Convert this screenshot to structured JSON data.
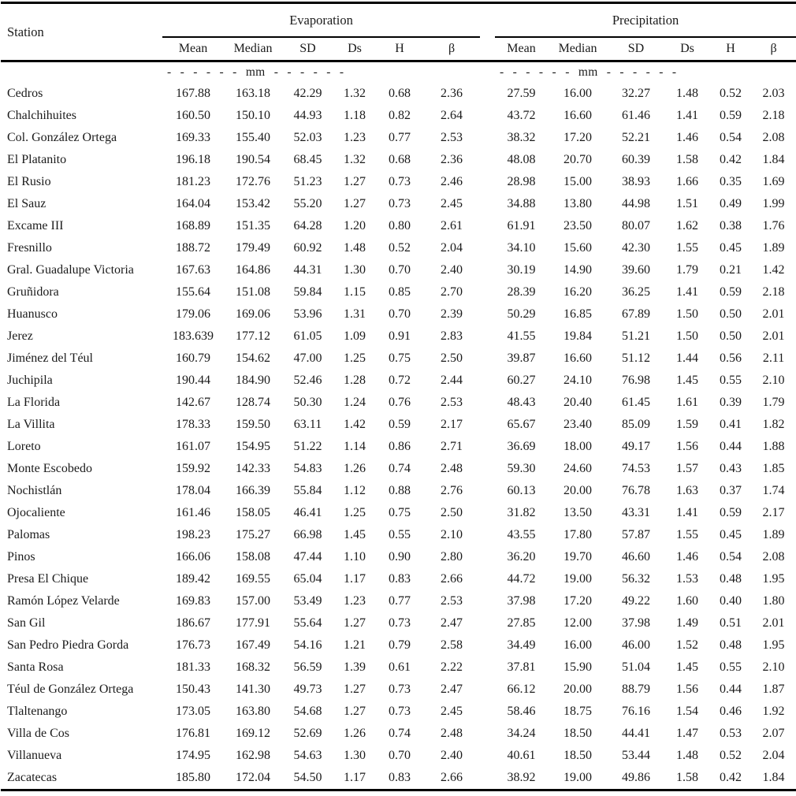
{
  "table": {
    "station_header": "Station",
    "groups": [
      {
        "label": "Evaporation"
      },
      {
        "label": "Precipitation"
      }
    ],
    "sub_headers": [
      "Mean",
      "Median",
      "SD",
      "Ds",
      "H",
      "β"
    ],
    "units": "- - - - - - mm - - - - - -",
    "rows": [
      {
        "station": "Cedros",
        "evap": [
          "167.88",
          "163.18",
          "42.29",
          "1.32",
          "0.68",
          "2.36"
        ],
        "precip": [
          "27.59",
          "16.00",
          "32.27",
          "1.48",
          "0.52",
          "2.03"
        ]
      },
      {
        "station": "Chalchihuites",
        "evap": [
          "160.50",
          "150.10",
          "44.93",
          "1.18",
          "0.82",
          "2.64"
        ],
        "precip": [
          "43.72",
          "16.60",
          "61.46",
          "1.41",
          "0.59",
          "2.18"
        ]
      },
      {
        "station": "Col. González Ortega",
        "evap": [
          "169.33",
          "155.40",
          "52.03",
          "1.23",
          "0.77",
          "2.53"
        ],
        "precip": [
          "38.32",
          "17.20",
          "52.21",
          "1.46",
          "0.54",
          "2.08"
        ]
      },
      {
        "station": "El Platanito",
        "evap": [
          "196.18",
          "190.54",
          "68.45",
          "1.32",
          "0.68",
          "2.36"
        ],
        "precip": [
          "48.08",
          "20.70",
          "60.39",
          "1.58",
          "0.42",
          "1.84"
        ]
      },
      {
        "station": "El Rusio",
        "evap": [
          "181.23",
          "172.76",
          "51.23",
          "1.27",
          "0.73",
          "2.46"
        ],
        "precip": [
          "28.98",
          "15.00",
          "38.93",
          "1.66",
          "0.35",
          "1.69"
        ]
      },
      {
        "station": "El Sauz",
        "evap": [
          "164.04",
          "153.42",
          "55.20",
          "1.27",
          "0.73",
          "2.45"
        ],
        "precip": [
          "34.88",
          "13.80",
          "44.98",
          "1.51",
          "0.49",
          "1.99"
        ]
      },
      {
        "station": "Excame III",
        "evap": [
          "168.89",
          "151.35",
          "64.28",
          "1.20",
          "0.80",
          "2.61"
        ],
        "precip": [
          "61.91",
          "23.50",
          "80.07",
          "1.62",
          "0.38",
          "1.76"
        ]
      },
      {
        "station": "Fresnillo",
        "evap": [
          "188.72",
          "179.49",
          "60.92",
          "1.48",
          "0.52",
          "2.04"
        ],
        "precip": [
          "34.10",
          "15.60",
          "42.30",
          "1.55",
          "0.45",
          "1.89"
        ]
      },
      {
        "station": "Gral. Guadalupe Victoria",
        "evap": [
          "167.63",
          "164.86",
          "44.31",
          "1.30",
          "0.70",
          "2.40"
        ],
        "precip": [
          "30.19",
          "14.90",
          "39.60",
          "1.79",
          "0.21",
          "1.42"
        ]
      },
      {
        "station": "Gruñidora",
        "evap": [
          "155.64",
          "151.08",
          "59.84",
          "1.15",
          "0.85",
          "2.70"
        ],
        "precip": [
          "28.39",
          "16.20",
          "36.25",
          "1.41",
          "0.59",
          "2.18"
        ]
      },
      {
        "station": "Huanusco",
        "evap": [
          "179.06",
          "169.06",
          "53.96",
          "1.31",
          "0.70",
          "2.39"
        ],
        "precip": [
          "50.29",
          "16.85",
          "67.89",
          "1.50",
          "0.50",
          "2.01"
        ]
      },
      {
        "station": "Jerez",
        "evap": [
          "183.639",
          "177.12",
          "61.05",
          "1.09",
          "0.91",
          "2.83"
        ],
        "precip": [
          "41.55",
          "19.84",
          "51.21",
          "1.50",
          "0.50",
          "2.01"
        ]
      },
      {
        "station": "Jiménez del Téul",
        "evap": [
          "160.79",
          "154.62",
          "47.00",
          "1.25",
          "0.75",
          "2.50"
        ],
        "precip": [
          "39.87",
          "16.60",
          "51.12",
          "1.44",
          "0.56",
          "2.11"
        ]
      },
      {
        "station": "Juchipila",
        "evap": [
          "190.44",
          "184.90",
          "52.46",
          "1.28",
          "0.72",
          "2.44"
        ],
        "precip": [
          "60.27",
          "24.10",
          "76.98",
          "1.45",
          "0.55",
          "2.10"
        ]
      },
      {
        "station": "La Florida",
        "evap": [
          "142.67",
          "128.74",
          "50.30",
          "1.24",
          "0.76",
          "2.53"
        ],
        "precip": [
          "48.43",
          "20.40",
          "61.45",
          "1.61",
          "0.39",
          "1.79"
        ]
      },
      {
        "station": "La Villita",
        "evap": [
          "178.33",
          "159.50",
          "63.11",
          "1.42",
          "0.59",
          "2.17"
        ],
        "precip": [
          "65.67",
          "23.40",
          "85.09",
          "1.59",
          "0.41",
          "1.82"
        ]
      },
      {
        "station": "Loreto",
        "evap": [
          "161.07",
          "154.95",
          "51.22",
          "1.14",
          "0.86",
          "2.71"
        ],
        "precip": [
          "36.69",
          "18.00",
          "49.17",
          "1.56",
          "0.44",
          "1.88"
        ]
      },
      {
        "station": "Monte Escobedo",
        "evap": [
          "159.92",
          "142.33",
          "54.83",
          "1.26",
          "0.74",
          "2.48"
        ],
        "precip": [
          "59.30",
          "24.60",
          "74.53",
          "1.57",
          "0.43",
          "1.85"
        ]
      },
      {
        "station": "Nochistlán",
        "evap": [
          "178.04",
          "166.39",
          "55.84",
          "1.12",
          "0.88",
          "2.76"
        ],
        "precip": [
          "60.13",
          "20.00",
          "76.78",
          "1.63",
          "0.37",
          "1.74"
        ]
      },
      {
        "station": "Ojocaliente",
        "evap": [
          "161.46",
          "158.05",
          "46.41",
          "1.25",
          "0.75",
          "2.50"
        ],
        "precip": [
          "31.82",
          "13.50",
          "43.31",
          "1.41",
          "0.59",
          "2.17"
        ]
      },
      {
        "station": "Palomas",
        "evap": [
          "198.23",
          "175.27",
          "66.98",
          "1.45",
          "0.55",
          "2.10"
        ],
        "precip": [
          "43.55",
          "17.80",
          "57.87",
          "1.55",
          "0.45",
          "1.89"
        ]
      },
      {
        "station": "Pinos",
        "evap": [
          "166.06",
          "158.08",
          "47.44",
          "1.10",
          "0.90",
          "2.80"
        ],
        "precip": [
          "36.20",
          "19.70",
          "46.60",
          "1.46",
          "0.54",
          "2.08"
        ]
      },
      {
        "station": "Presa El Chique",
        "evap": [
          "189.42",
          "169.55",
          "65.04",
          "1.17",
          "0.83",
          "2.66"
        ],
        "precip": [
          "44.72",
          "19.00",
          "56.32",
          "1.53",
          "0.48",
          "1.95"
        ]
      },
      {
        "station": "Ramón López Velarde",
        "evap": [
          "169.83",
          "157.00",
          "53.49",
          "1.23",
          "0.77",
          "2.53"
        ],
        "precip": [
          "37.98",
          "17.20",
          "49.22",
          "1.60",
          "0.40",
          "1.80"
        ]
      },
      {
        "station": "San Gil",
        "evap": [
          "186.67",
          "177.91",
          "55.64",
          "1.27",
          "0.73",
          "2.47"
        ],
        "precip": [
          "27.85",
          "12.00",
          "37.98",
          "1.49",
          "0.51",
          "2.01"
        ]
      },
      {
        "station": "San Pedro Piedra Gorda",
        "evap": [
          "176.73",
          "167.49",
          "54.16",
          "1.21",
          "0.79",
          "2.58"
        ],
        "precip": [
          "34.49",
          "16.00",
          "46.00",
          "1.52",
          "0.48",
          "1.95"
        ]
      },
      {
        "station": "Santa Rosa",
        "evap": [
          "181.33",
          "168.32",
          "56.59",
          "1.39",
          "0.61",
          "2.22"
        ],
        "precip": [
          "37.81",
          "15.90",
          "51.04",
          "1.45",
          "0.55",
          "2.10"
        ]
      },
      {
        "station": "Téul de González Ortega",
        "evap": [
          "150.43",
          "141.30",
          "49.73",
          "1.27",
          "0.73",
          "2.47"
        ],
        "precip": [
          "66.12",
          "20.00",
          "88.79",
          "1.56",
          "0.44",
          "1.87"
        ]
      },
      {
        "station": "Tlaltenango",
        "evap": [
          "173.05",
          "163.80",
          "54.68",
          "1.27",
          "0.73",
          "2.45"
        ],
        "precip": [
          "58.46",
          "18.75",
          "76.16",
          "1.54",
          "0.46",
          "1.92"
        ]
      },
      {
        "station": "Villa de Cos",
        "evap": [
          "176.81",
          "169.12",
          "52.69",
          "1.26",
          "0.74",
          "2.48"
        ],
        "precip": [
          "34.24",
          "18.50",
          "44.41",
          "1.47",
          "0.53",
          "2.07"
        ]
      },
      {
        "station": "Villanueva",
        "evap": [
          "174.95",
          "162.98",
          "54.63",
          "1.30",
          "0.70",
          "2.40"
        ],
        "precip": [
          "40.61",
          "18.50",
          "53.44",
          "1.48",
          "0.52",
          "2.04"
        ]
      },
      {
        "station": "Zacatecas",
        "evap": [
          "185.80",
          "172.04",
          "54.50",
          "1.17",
          "0.83",
          "2.66"
        ],
        "precip": [
          "38.92",
          "19.00",
          "49.86",
          "1.58",
          "0.42",
          "1.84"
        ]
      }
    ]
  }
}
